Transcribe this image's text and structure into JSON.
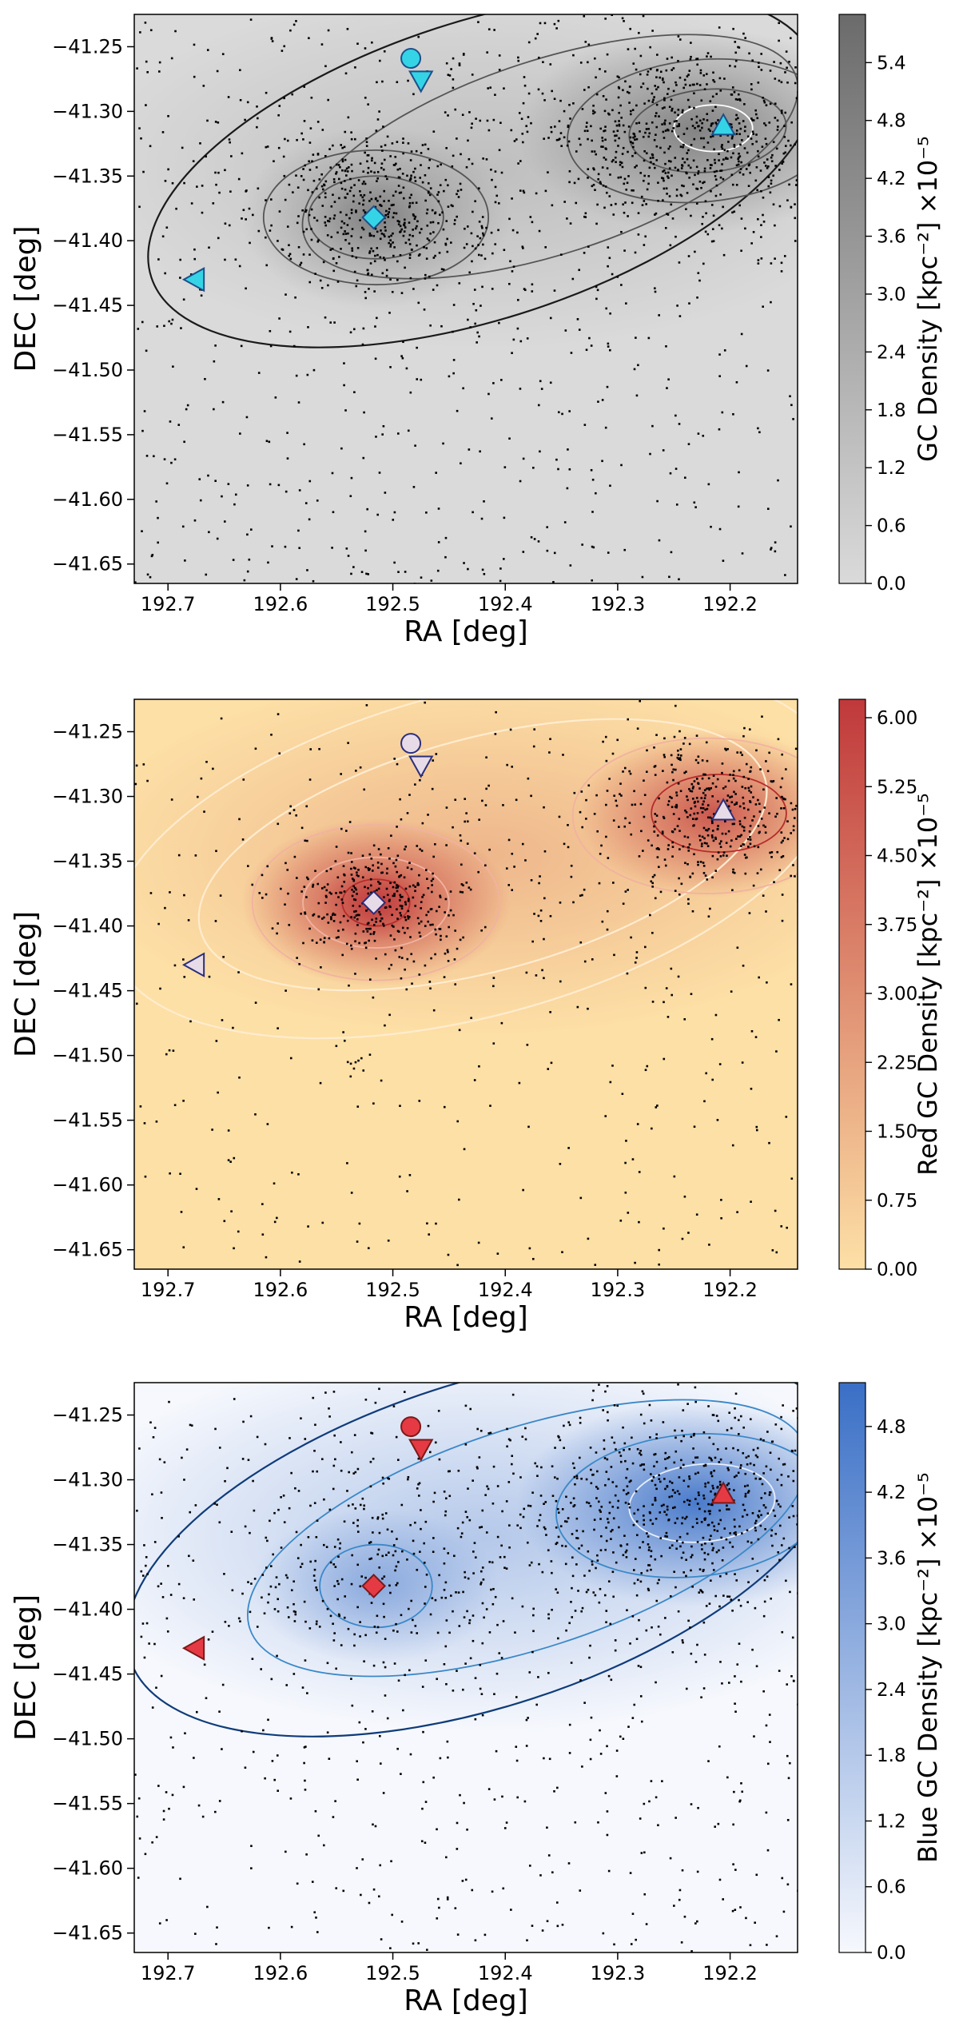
{
  "chart_data": [
    {
      "type": "scatter",
      "panel": "all",
      "colormap": "grey",
      "colors": {
        "low": "#dadada",
        "high": "#6b6b6b",
        "contour_outer": "#1a1a1a",
        "contour_inner": "#555555",
        "contour_core": "#ffffff",
        "marker_fill": "#34d4e6",
        "marker_edge": "#1d4f8a"
      },
      "xlabel": "RA [deg]",
      "ylabel": "DEC [deg]",
      "xlim": [
        192.73,
        192.14
      ],
      "ylim": [
        -41.665,
        -41.225
      ],
      "xticks": [
        192.7,
        192.6,
        192.5,
        192.4,
        192.3,
        192.2
      ],
      "xtick_labels": [
        "192.7",
        "192.6",
        "192.5",
        "192.4",
        "192.3",
        "192.2"
      ],
      "yticks": [
        -41.25,
        -41.3,
        -41.35,
        -41.4,
        -41.45,
        -41.5,
        -41.55,
        -41.6,
        -41.65
      ],
      "ytick_labels": [
        "−41.25",
        "−41.30",
        "−41.35",
        "−41.40",
        "−41.45",
        "−41.50",
        "−41.55",
        "−41.60",
        "−41.65"
      ],
      "colorbar": {
        "label": "GC Density [kpc⁻²] ×10⁻⁵",
        "range": [
          0,
          5.9
        ],
        "ticks": [
          0,
          0.6,
          1.2,
          1.8,
          2.4,
          3.0,
          3.6,
          4.2,
          4.8,
          5.4
        ],
        "tick_labels": [
          "0.0",
          "0.6",
          "1.2",
          "1.8",
          "2.4",
          "3.0",
          "3.6",
          "4.2",
          "4.8",
          "5.4"
        ]
      },
      "markers": [
        {
          "shape": "circle",
          "ra": 192.484,
          "dec": -41.259
        },
        {
          "shape": "triangle-down",
          "ra": 192.475,
          "dec": -41.276
        },
        {
          "shape": "diamond",
          "ra": 192.517,
          "dec": -41.382
        },
        {
          "shape": "triangle-up",
          "ra": 192.206,
          "dec": -41.311
        },
        {
          "shape": "triangle-left",
          "ra": 192.676,
          "dec": -41.43
        }
      ]
    },
    {
      "type": "scatter",
      "panel": "red",
      "colormap": "orange-red",
      "colors": {
        "low": "#fde0a6",
        "high": "#c0393b",
        "contour_outer": "#ffeccf",
        "contour_inner": "#f1b2a0",
        "contour_core": "#b52b2b",
        "marker_fill": "#e8dbe8",
        "marker_edge": "#2b2f7a"
      },
      "xlabel": "RA [deg]",
      "ylabel": "DEC [deg]",
      "xlim": [
        192.73,
        192.14
      ],
      "ylim": [
        -41.665,
        -41.225
      ],
      "xticks": [
        192.7,
        192.6,
        192.5,
        192.4,
        192.3,
        192.2
      ],
      "xtick_labels": [
        "192.7",
        "192.6",
        "192.5",
        "192.4",
        "192.3",
        "192.2"
      ],
      "yticks": [
        -41.25,
        -41.3,
        -41.35,
        -41.4,
        -41.45,
        -41.5,
        -41.55,
        -41.6,
        -41.65
      ],
      "ytick_labels": [
        "−41.25",
        "−41.30",
        "−41.35",
        "−41.40",
        "−41.45",
        "−41.50",
        "−41.55",
        "−41.60",
        "−41.65"
      ],
      "colorbar": {
        "label": "Red GC Density [kpc⁻²] ×10⁻⁵",
        "range": [
          0,
          6.2
        ],
        "ticks": [
          0,
          0.75,
          1.5,
          2.25,
          3.0,
          3.75,
          4.5,
          5.25,
          6.0
        ],
        "tick_labels": [
          "0.00",
          "0.75",
          "1.50",
          "2.25",
          "3.00",
          "3.75",
          "4.50",
          "5.25",
          "6.00"
        ]
      },
      "markers": [
        {
          "shape": "circle",
          "ra": 192.484,
          "dec": -41.259
        },
        {
          "shape": "triangle-down",
          "ra": 192.475,
          "dec": -41.276
        },
        {
          "shape": "diamond",
          "ra": 192.517,
          "dec": -41.382
        },
        {
          "shape": "triangle-up",
          "ra": 192.206,
          "dec": -41.311
        },
        {
          "shape": "triangle-left",
          "ra": 192.676,
          "dec": -41.43
        }
      ]
    },
    {
      "type": "scatter",
      "panel": "blue",
      "colormap": "white-blue",
      "colors": {
        "low": "#f6f8fd",
        "high": "#3a6fc6",
        "contour_outer": "#103c7a",
        "contour_inner": "#3b88c8",
        "contour_core": "#e8f0ff",
        "marker_fill": "#e53a44",
        "marker_edge": "#7a1a1a"
      },
      "xlabel": "RA [deg]",
      "ylabel": "DEC [deg]",
      "xlim": [
        192.73,
        192.14
      ],
      "ylim": [
        -41.665,
        -41.225
      ],
      "xticks": [
        192.7,
        192.6,
        192.5,
        192.4,
        192.3,
        192.2
      ],
      "xtick_labels": [
        "192.7",
        "192.6",
        "192.5",
        "192.4",
        "192.3",
        "192.2"
      ],
      "yticks": [
        -41.25,
        -41.3,
        -41.35,
        -41.4,
        -41.45,
        -41.5,
        -41.55,
        -41.6,
        -41.65
      ],
      "ytick_labels": [
        "−41.25",
        "−41.30",
        "−41.35",
        "−41.40",
        "−41.45",
        "−41.50",
        "−41.55",
        "−41.60",
        "−41.65"
      ],
      "colorbar": {
        "label": "Blue GC Density [kpc⁻²] ×10⁻⁵",
        "range": [
          0,
          5.2
        ],
        "ticks": [
          0,
          0.6,
          1.2,
          1.8,
          2.4,
          3.0,
          3.6,
          4.2,
          4.8
        ],
        "tick_labels": [
          "0.0",
          "0.6",
          "1.2",
          "1.8",
          "2.4",
          "3.0",
          "3.6",
          "4.2",
          "4.8"
        ]
      },
      "markers": [
        {
          "shape": "circle",
          "ra": 192.484,
          "dec": -41.259
        },
        {
          "shape": "triangle-down",
          "ra": 192.475,
          "dec": -41.276
        },
        {
          "shape": "diamond",
          "ra": 192.517,
          "dec": -41.382
        },
        {
          "shape": "triangle-up",
          "ra": 192.206,
          "dec": -41.311
        },
        {
          "shape": "triangle-left",
          "ra": 192.676,
          "dec": -41.43
        }
      ]
    }
  ]
}
